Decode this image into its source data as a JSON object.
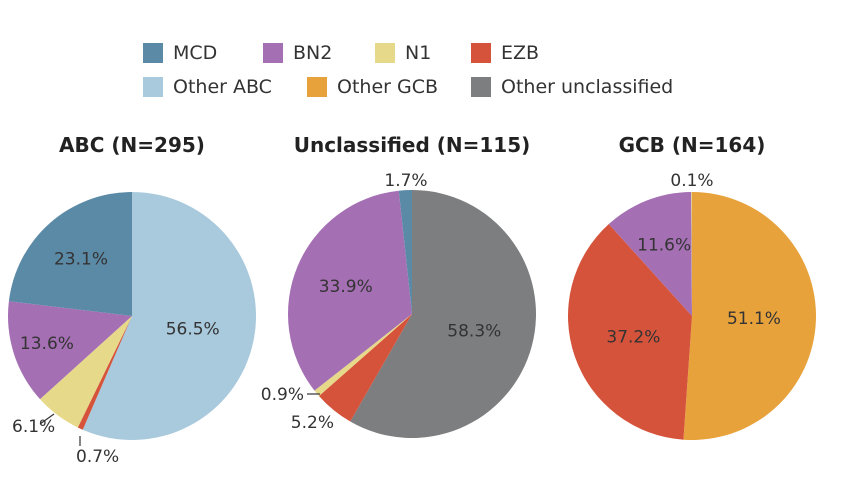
{
  "chart_data": [
    {
      "type": "pie",
      "title": "ABC (N=295)",
      "slices": [
        {
          "name": "Other ABC",
          "value": 56.5,
          "label": "56.5%"
        },
        {
          "name": "EZB",
          "value": 0.7,
          "label": "0.7%"
        },
        {
          "name": "N1",
          "value": 6.1,
          "label": "6.1%"
        },
        {
          "name": "BN2",
          "value": 13.6,
          "label": "13.6%"
        },
        {
          "name": "MCD",
          "value": 23.1,
          "label": "23.1%"
        }
      ]
    },
    {
      "type": "pie",
      "title": "Unclassified (N=115)",
      "slices": [
        {
          "name": "Other unclassified",
          "value": 58.3,
          "label": "58.3%"
        },
        {
          "name": "EZB",
          "value": 5.2,
          "label": "5.2%"
        },
        {
          "name": "N1",
          "value": 0.9,
          "label": "0.9%"
        },
        {
          "name": "BN2",
          "value": 33.9,
          "label": "33.9%"
        },
        {
          "name": "MCD",
          "value": 1.7,
          "label": "1.7%"
        }
      ]
    },
    {
      "type": "pie",
      "title": "GCB (N=164)",
      "slices": [
        {
          "name": "Other GCB",
          "value": 51.1,
          "label": "51.1%"
        },
        {
          "name": "EZB",
          "value": 37.2,
          "label": "37.2%"
        },
        {
          "name": "BN2",
          "value": 11.6,
          "label": "11.6%"
        },
        {
          "name": "N1",
          "value": 0.1,
          "label": "0.1%"
        }
      ]
    }
  ],
  "legend": [
    {
      "name": "MCD",
      "color": "#5b8aa6"
    },
    {
      "name": "BN2",
      "color": "#a56fb4"
    },
    {
      "name": "N1",
      "color": "#e6da8a"
    },
    {
      "name": "EZB",
      "color": "#d5533b"
    },
    {
      "name": "Other ABC",
      "color": "#a9c9dd"
    },
    {
      "name": "Other GCB",
      "color": "#e8a23c"
    },
    {
      "name": "Other unclassified",
      "color": "#7d7e80"
    }
  ]
}
